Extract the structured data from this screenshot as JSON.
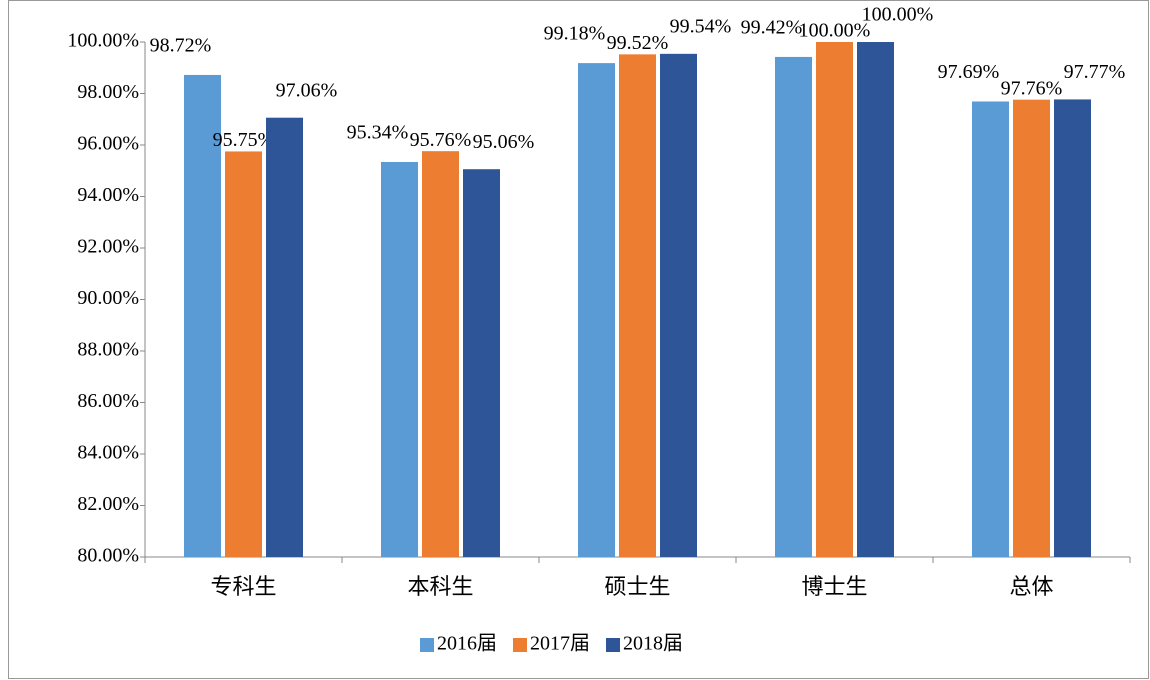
{
  "chart_data": {
    "type": "bar",
    "categories": [
      "专科生",
      "本科生",
      "硕士生",
      "博士生",
      "总体"
    ],
    "series": [
      {
        "name": "2016届",
        "color": "#5b9bd5",
        "values": [
          98.72,
          95.34,
          99.18,
          99.42,
          97.69
        ],
        "value_labels": [
          "98.72%",
          "95.34%",
          "99.18%",
          "99.42%",
          "97.69%"
        ]
      },
      {
        "name": "2017届",
        "color": "#ed7d31",
        "values": [
          95.75,
          95.76,
          99.52,
          100.0,
          97.76
        ],
        "value_labels": [
          "95.75%",
          "95.76%",
          "99.52%",
          "100.00%",
          "97.76%"
        ]
      },
      {
        "name": "2018届",
        "color": "#2e5597",
        "values": [
          97.06,
          95.06,
          99.54,
          100.0,
          97.77
        ],
        "value_labels": [
          "97.06%",
          "95.06%",
          "99.54%",
          "100.00%",
          "97.77%"
        ]
      }
    ],
    "ylim": [
      80,
      100
    ],
    "yticks": [
      {
        "value": 80,
        "label": "80.00%"
      },
      {
        "value": 82,
        "label": "82.00%"
      },
      {
        "value": 84,
        "label": "84.00%"
      },
      {
        "value": 86,
        "label": "86.00%"
      },
      {
        "value": 88,
        "label": "88.00%"
      },
      {
        "value": 90,
        "label": "90.00%"
      },
      {
        "value": 92,
        "label": "92.00%"
      },
      {
        "value": 94,
        "label": "94.00%"
      },
      {
        "value": 96,
        "label": "96.00%"
      },
      {
        "value": 98,
        "label": "98.00%"
      },
      {
        "value": 100,
        "label": "100.00%"
      }
    ],
    "legend": "bottom",
    "grid": false
  }
}
